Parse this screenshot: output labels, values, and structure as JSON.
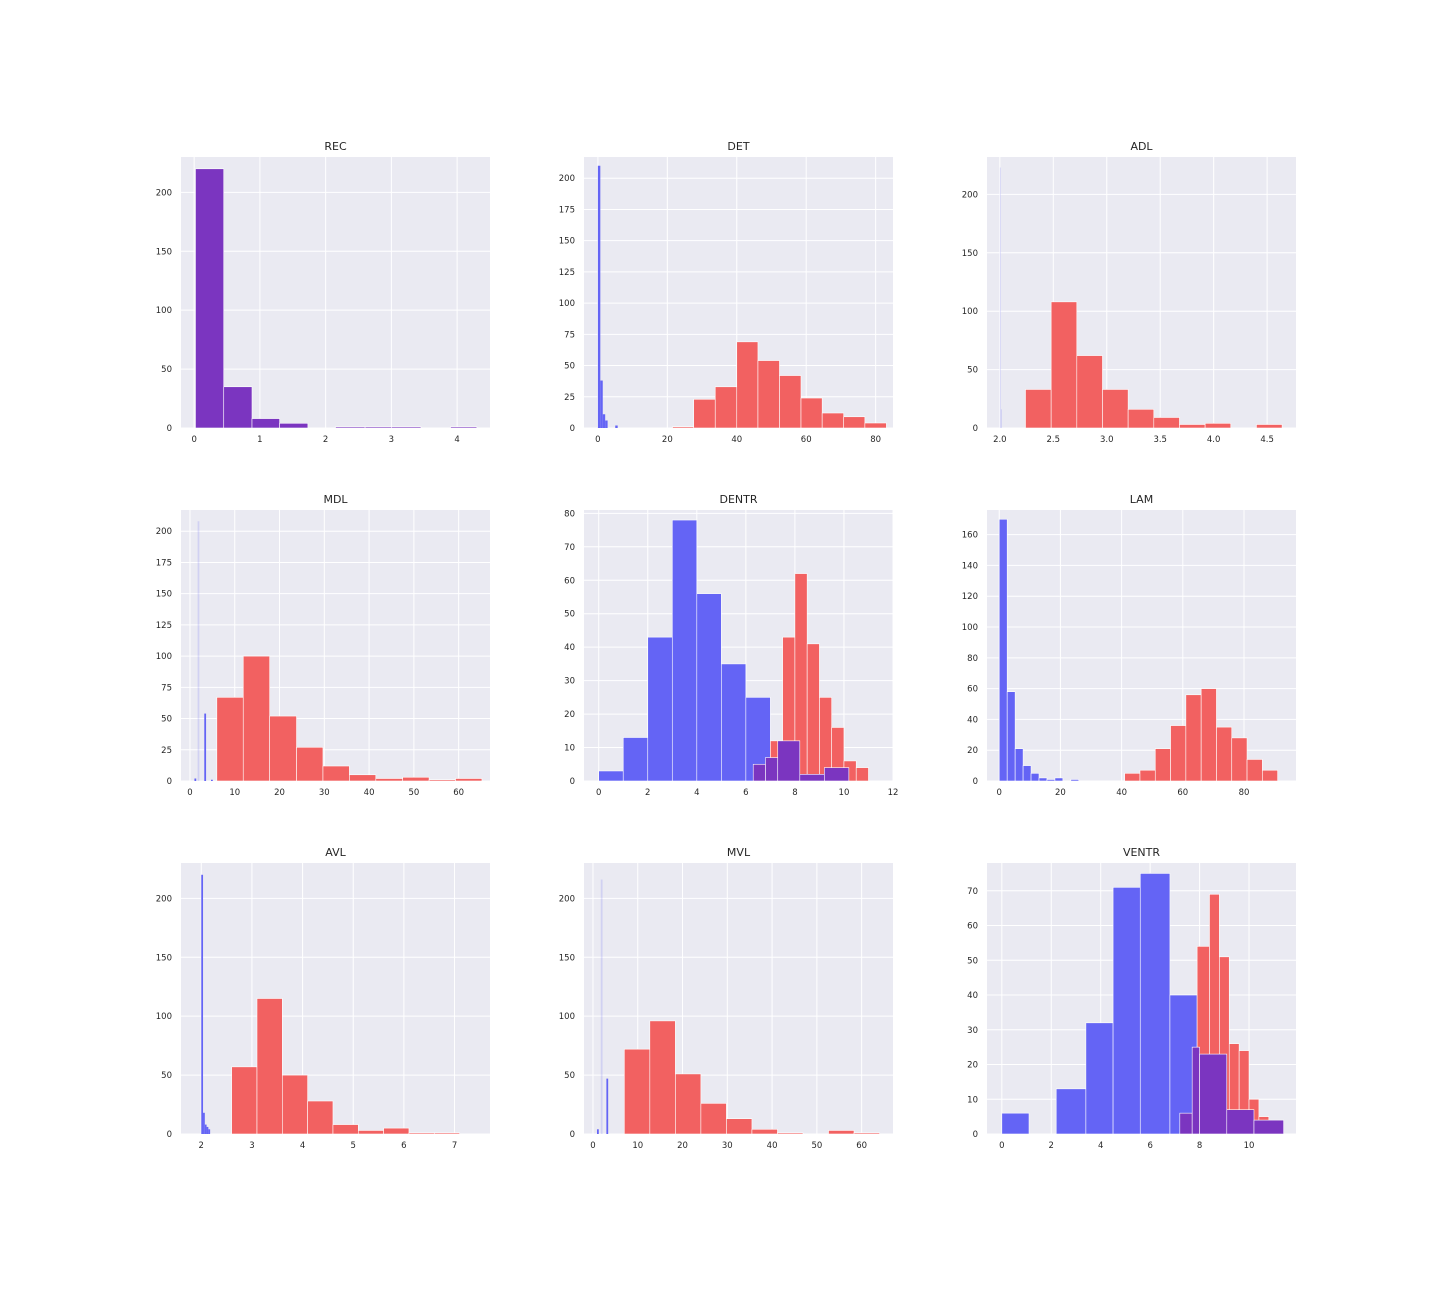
{
  "colors": {
    "red": "#f26161",
    "blue": "#6464f5",
    "overlap": "#7b35c0",
    "panel_bg": "#eaeaf2",
    "grid": "#ffffff",
    "text": "#262626"
  },
  "chart_data": [
    {
      "type": "bar",
      "title": "REC",
      "xlim": [
        -0.2,
        4.5
      ],
      "ylim": [
        0,
        230
      ],
      "xticks": [
        0,
        1,
        2,
        3,
        4
      ],
      "xtick_labels": [
        "0",
        "1",
        "2",
        "3",
        "4"
      ],
      "yticks": [
        0,
        50,
        100,
        150,
        200
      ],
      "ytick_labels": [
        "0",
        "50",
        "100",
        "150",
        "200"
      ],
      "series": [
        {
          "color": "overlap",
          "bins": [
            [
              0.02,
              0.45,
              220
            ],
            [
              0.45,
              0.88,
              35
            ],
            [
              0.88,
              1.3,
              8
            ],
            [
              1.3,
              1.73,
              4
            ],
            [
              2.15,
              2.6,
              1
            ],
            [
              2.6,
              3.0,
              1
            ],
            [
              3.0,
              3.45,
              1
            ],
            [
              3.9,
              4.3,
              1
            ]
          ]
        }
      ]
    },
    {
      "type": "bar",
      "title": "DET",
      "xlim": [
        -4,
        85
      ],
      "ylim": [
        0,
        217
      ],
      "xticks": [
        0,
        20,
        40,
        60,
        80
      ],
      "xtick_labels": [
        "0",
        "20",
        "40",
        "60",
        "80"
      ],
      "yticks": [
        0,
        25,
        50,
        75,
        100,
        125,
        150,
        175,
        200
      ],
      "ytick_labels": [
        "0",
        "25",
        "50",
        "75",
        "100",
        "125",
        "150",
        "175",
        "200"
      ],
      "series": [
        {
          "color": "red",
          "bins": [
            [
              21.5,
              27.6,
              1
            ],
            [
              27.6,
              33.8,
              23
            ],
            [
              33.8,
              40.0,
              33
            ],
            [
              40.0,
              46.1,
              69
            ],
            [
              46.1,
              52.3,
              54
            ],
            [
              52.3,
              58.5,
              42
            ],
            [
              58.5,
              64.6,
              24
            ],
            [
              64.6,
              70.8,
              12
            ],
            [
              70.8,
              76.9,
              9
            ],
            [
              76.9,
              83.1,
              4
            ]
          ]
        },
        {
          "color": "blue",
          "bins": [
            [
              0.0,
              0.7,
              210
            ],
            [
              0.7,
              1.4,
              38
            ],
            [
              1.4,
              2.1,
              11
            ],
            [
              2.1,
              2.8,
              6
            ],
            [
              5.0,
              5.7,
              2
            ]
          ]
        }
      ]
    },
    {
      "type": "bar",
      "title": "ADL",
      "xlim": [
        1.88,
        4.77
      ],
      "ylim": [
        0,
        232
      ],
      "xticks": [
        2.0,
        2.5,
        3.0,
        3.5,
        4.0,
        4.5
      ],
      "xtick_labels": [
        "2.0",
        "2.5",
        "3.0",
        "3.5",
        "4.0",
        "4.5"
      ],
      "yticks": [
        0,
        50,
        100,
        150,
        200
      ],
      "ytick_labels": [
        "0",
        "50",
        "100",
        "150",
        "200"
      ],
      "series": [
        {
          "color": "red",
          "bins": [
            [
              2.24,
              2.48,
              33
            ],
            [
              2.48,
              2.72,
              108
            ],
            [
              2.72,
              2.96,
              62
            ],
            [
              2.96,
              3.2,
              33
            ],
            [
              3.2,
              3.44,
              16
            ],
            [
              3.44,
              3.68,
              9
            ],
            [
              3.68,
              3.92,
              3
            ],
            [
              3.92,
              4.16,
              4
            ],
            [
              4.4,
              4.64,
              3
            ]
          ]
        },
        {
          "color": "blue",
          "opacity": 0.18,
          "bins": [
            [
              2.0,
              2.01,
              223
            ],
            [
              2.01,
              2.02,
              16
            ]
          ]
        }
      ]
    },
    {
      "type": "bar",
      "title": "MDL",
      "xlim": [
        -2,
        67
      ],
      "ylim": [
        0,
        217
      ],
      "xticks": [
        0,
        10,
        20,
        30,
        40,
        50,
        60
      ],
      "xtick_labels": [
        "0",
        "10",
        "20",
        "30",
        "40",
        "50",
        "60"
      ],
      "yticks": [
        0,
        25,
        50,
        75,
        100,
        125,
        150,
        175,
        200
      ],
      "ytick_labels": [
        "0",
        "25",
        "50",
        "75",
        "100",
        "125",
        "150",
        "175",
        "200"
      ],
      "series": [
        {
          "color": "red",
          "bins": [
            [
              6.0,
              11.9,
              67
            ],
            [
              11.9,
              17.8,
              100
            ],
            [
              17.8,
              23.8,
              52
            ],
            [
              23.8,
              29.7,
              27
            ],
            [
              29.7,
              35.6,
              12
            ],
            [
              35.6,
              41.5,
              5
            ],
            [
              41.5,
              47.5,
              2
            ],
            [
              47.5,
              53.4,
              3
            ],
            [
              53.4,
              59.3,
              1
            ],
            [
              59.3,
              65.2,
              2
            ]
          ]
        },
        {
          "color": "blue",
          "bins": [
            [
              1.0,
              1.4,
              2
            ],
            [
              3.2,
              3.6,
              54
            ],
            [
              4.7,
              5.1,
              1
            ]
          ]
        },
        {
          "color": "blue",
          "opacity": 0.18,
          "bins": [
            [
              1.7,
              2.1,
              208
            ]
          ]
        }
      ]
    },
    {
      "type": "bar",
      "title": "DENTR",
      "xlim": [
        -0.6,
        12.0
      ],
      "ylim": [
        0,
        81
      ],
      "xticks": [
        0,
        2,
        4,
        6,
        8,
        10,
        12
      ],
      "xtick_labels": [
        "0",
        "2",
        "4",
        "6",
        "8",
        "10",
        "12"
      ],
      "yticks": [
        0,
        10,
        20,
        30,
        40,
        50,
        60,
        70,
        80
      ],
      "ytick_labels": [
        "0",
        "10",
        "20",
        "30",
        "40",
        "50",
        "60",
        "70",
        "80"
      ],
      "series": [
        {
          "color": "blue",
          "bins": [
            [
              0.0,
              1.0,
              3
            ],
            [
              1.0,
              2.0,
              13
            ],
            [
              2.0,
              3.0,
              43
            ],
            [
              3.0,
              4.0,
              78
            ],
            [
              4.0,
              5.0,
              56
            ],
            [
              5.0,
              6.0,
              35
            ],
            [
              6.0,
              7.0,
              25
            ]
          ]
        },
        {
          "color": "red",
          "bins": [
            [
              7.0,
              7.5,
              12
            ],
            [
              7.5,
              8.0,
              43
            ],
            [
              8.0,
              8.5,
              62
            ],
            [
              8.5,
              9.0,
              41
            ],
            [
              9.0,
              9.5,
              25
            ],
            [
              9.5,
              10.0,
              16
            ],
            [
              10.0,
              10.5,
              6
            ],
            [
              10.5,
              11.0,
              4
            ]
          ]
        },
        {
          "color": "overlap",
          "bins": [
            [
              6.3,
              6.8,
              5
            ],
            [
              6.8,
              7.3,
              7
            ],
            [
              7.3,
              8.2,
              12
            ],
            [
              8.2,
              9.2,
              2
            ],
            [
              9.2,
              10.2,
              4
            ]
          ]
        }
      ]
    },
    {
      "type": "bar",
      "title": "LAM",
      "xlim": [
        -4,
        97
      ],
      "ylim": [
        0,
        176
      ],
      "xticks": [
        0,
        20,
        40,
        60,
        80
      ],
      "xtick_labels": [
        "0",
        "20",
        "40",
        "60",
        "80"
      ],
      "yticks": [
        0,
        20,
        40,
        60,
        80,
        100,
        120,
        140,
        160
      ],
      "ytick_labels": [
        "0",
        "20",
        "40",
        "60",
        "80",
        "100",
        "120",
        "140",
        "160"
      ],
      "series": [
        {
          "color": "red",
          "bins": [
            [
              41.0,
              46.0,
              5
            ],
            [
              46.0,
              51.0,
              7
            ],
            [
              51.0,
              56.0,
              21
            ],
            [
              56.0,
              61.0,
              36
            ],
            [
              61.0,
              66.0,
              56
            ],
            [
              66.0,
              71.0,
              60
            ],
            [
              71.0,
              76.0,
              35
            ],
            [
              76.0,
              81.0,
              28
            ],
            [
              81.0,
              86.0,
              14
            ],
            [
              86.0,
              91.0,
              7
            ]
          ]
        },
        {
          "color": "blue",
          "bins": [
            [
              0.0,
              2.6,
              170
            ],
            [
              2.6,
              5.2,
              58
            ],
            [
              5.2,
              7.8,
              21
            ],
            [
              7.8,
              10.4,
              10
            ],
            [
              10.4,
              13.0,
              5
            ],
            [
              13.0,
              15.6,
              2
            ],
            [
              15.6,
              18.2,
              1
            ],
            [
              18.2,
              20.8,
              2
            ],
            [
              23.4,
              26.0,
              1
            ]
          ]
        }
      ]
    },
    {
      "type": "bar",
      "title": "AVL",
      "xlim": [
        1.6,
        7.7
      ],
      "ylim": [
        0,
        230
      ],
      "xticks": [
        2,
        3,
        4,
        5,
        6,
        7
      ],
      "xtick_labels": [
        "2",
        "3",
        "4",
        "5",
        "6",
        "7"
      ],
      "yticks": [
        0,
        50,
        100,
        150,
        200
      ],
      "ytick_labels": [
        "0",
        "50",
        "100",
        "150",
        "200"
      ],
      "series": [
        {
          "color": "red",
          "bins": [
            [
              2.6,
              3.1,
              57
            ],
            [
              3.1,
              3.6,
              115
            ],
            [
              3.6,
              4.1,
              50
            ],
            [
              4.1,
              4.6,
              28
            ],
            [
              4.6,
              5.1,
              8
            ],
            [
              5.1,
              5.6,
              3
            ],
            [
              5.6,
              6.1,
              5
            ],
            [
              6.1,
              6.6,
              1
            ],
            [
              6.6,
              7.1,
              1
            ]
          ]
        },
        {
          "color": "blue",
          "bins": [
            [
              2.0,
              2.035,
              220
            ],
            [
              2.035,
              2.07,
              18
            ],
            [
              2.07,
              2.105,
              8
            ],
            [
              2.105,
              2.14,
              6
            ],
            [
              2.14,
              2.175,
              4
            ]
          ]
        }
      ]
    },
    {
      "type": "bar",
      "title": "MVL",
      "xlim": [
        -2,
        67
      ],
      "ylim": [
        0,
        230
      ],
      "xticks": [
        0,
        10,
        20,
        30,
        40,
        50,
        60
      ],
      "xtick_labels": [
        "0",
        "10",
        "20",
        "30",
        "40",
        "50",
        "60"
      ],
      "yticks": [
        0,
        50,
        100,
        150,
        200
      ],
      "ytick_labels": [
        "0",
        "50",
        "100",
        "150",
        "200"
      ],
      "series": [
        {
          "color": "red",
          "bins": [
            [
              7.0,
              12.7,
              72
            ],
            [
              12.7,
              18.4,
              96
            ],
            [
              18.4,
              24.1,
              51
            ],
            [
              24.1,
              29.8,
              26
            ],
            [
              29.8,
              35.5,
              13
            ],
            [
              35.5,
              41.2,
              4
            ],
            [
              41.2,
              46.9,
              1
            ],
            [
              52.6,
              58.3,
              3
            ],
            [
              58.3,
              64.0,
              1
            ]
          ]
        },
        {
          "color": "blue",
          "bins": [
            [
              0.9,
              1.3,
              4
            ],
            [
              3.0,
              3.4,
              47
            ]
          ]
        },
        {
          "color": "blue",
          "opacity": 0.18,
          "bins": [
            [
              1.75,
              2.15,
              216
            ]
          ]
        }
      ]
    },
    {
      "type": "bar",
      "title": "VENTR",
      "xlim": [
        -0.6,
        11.9
      ],
      "ylim": [
        0,
        78
      ],
      "xticks": [
        0,
        2,
        4,
        6,
        8,
        10
      ],
      "xtick_labels": [
        "0",
        "2",
        "4",
        "6",
        "8",
        "10"
      ],
      "yticks": [
        0,
        10,
        20,
        30,
        40,
        50,
        60,
        70
      ],
      "ytick_labels": [
        "0",
        "10",
        "20",
        "30",
        "40",
        "50",
        "60",
        "70"
      ],
      "series": [
        {
          "color": "blue",
          "bins": [
            [
              0.0,
              1.1,
              6
            ],
            [
              2.2,
              3.4,
              13
            ],
            [
              3.4,
              4.5,
              32
            ],
            [
              4.5,
              5.6,
              71
            ],
            [
              5.6,
              6.8,
              75
            ],
            [
              6.8,
              7.9,
              40
            ]
          ]
        },
        {
          "color": "red",
          "bins": [
            [
              7.9,
              8.4,
              54
            ],
            [
              8.4,
              8.8,
              69
            ],
            [
              8.8,
              9.2,
              51
            ],
            [
              9.2,
              9.6,
              26
            ],
            [
              9.6,
              10.0,
              24
            ],
            [
              10.0,
              10.4,
              10
            ],
            [
              10.4,
              10.8,
              5
            ],
            [
              10.8,
              11.2,
              2
            ]
          ]
        },
        {
          "color": "overlap",
          "bins": [
            [
              7.2,
              7.7,
              6
            ],
            [
              7.7,
              8.0,
              25
            ],
            [
              8.0,
              9.1,
              23
            ],
            [
              9.1,
              10.2,
              7
            ],
            [
              10.2,
              11.4,
              4
            ]
          ]
        }
      ]
    }
  ]
}
